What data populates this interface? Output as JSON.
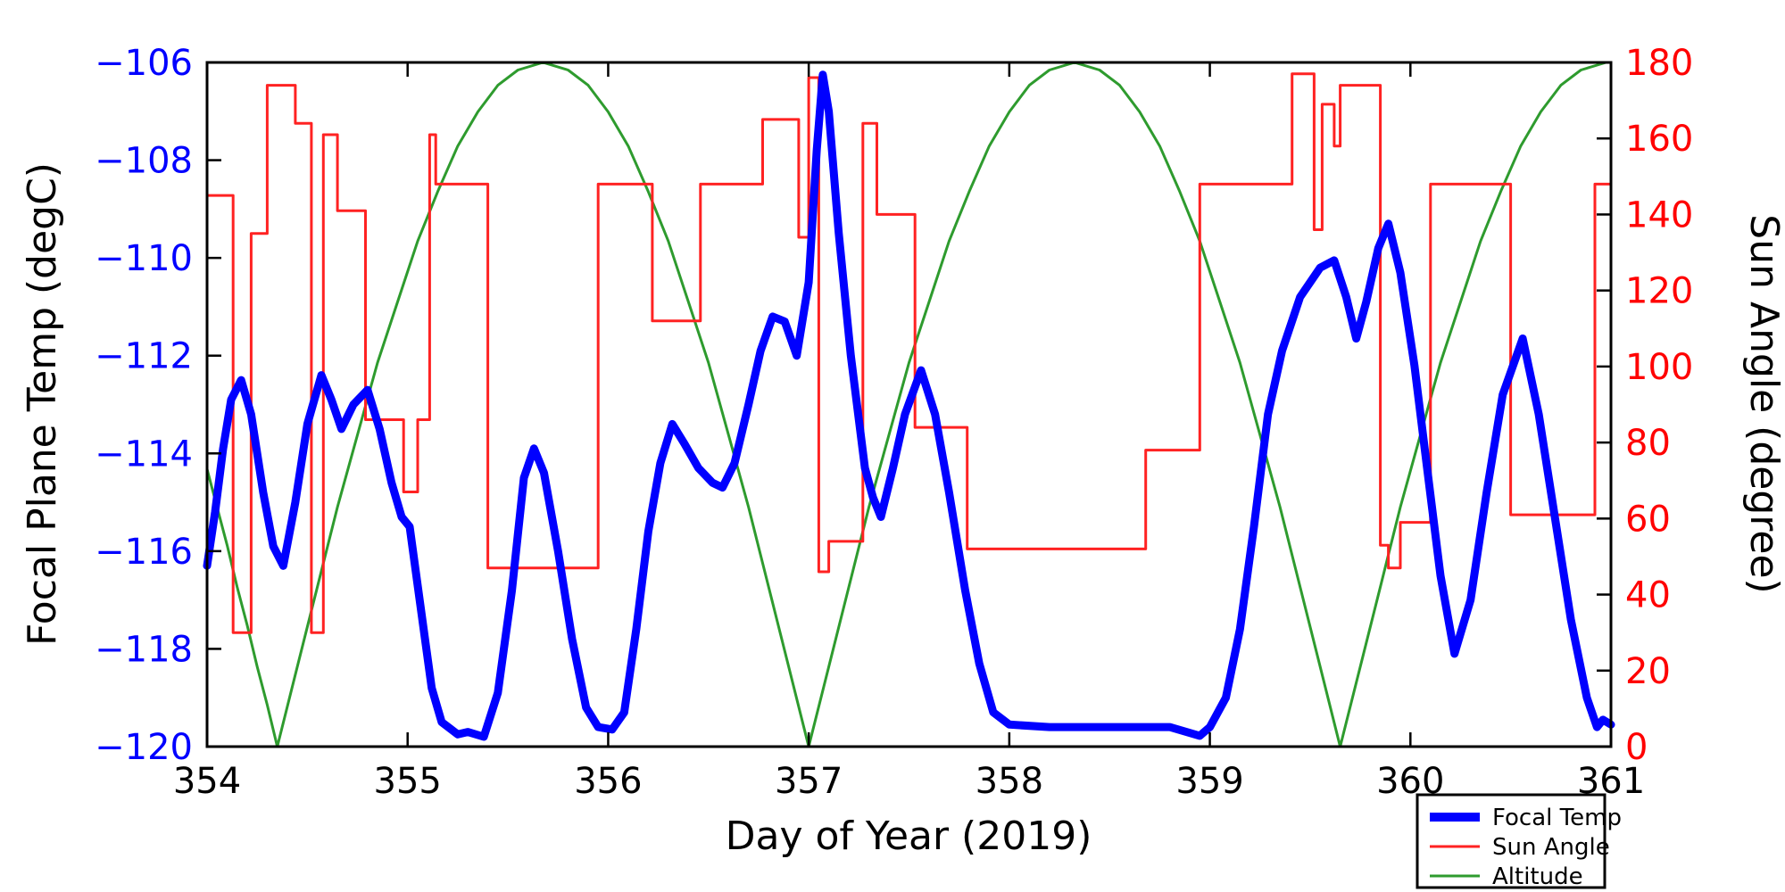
{
  "figure": {
    "background": "#ffffff"
  },
  "axes": {
    "x": {
      "label": "Day of Year (2019)",
      "min": 354,
      "max": 361,
      "ticks": [
        354,
        355,
        356,
        357,
        358,
        359,
        360,
        361
      ],
      "tick_color": "#000000",
      "label_color": "#000000"
    },
    "y_left": {
      "label": "Focal Plane Temp (degC)",
      "min": -120,
      "max": -106,
      "ticks": [
        -106,
        -108,
        -110,
        -112,
        -114,
        -116,
        -118,
        -120
      ],
      "tick_color": "#0000ff",
      "label_color": "#000000"
    },
    "y_right": {
      "label": "Sun Angle (degree)",
      "min": 0,
      "max": 180,
      "ticks": [
        180,
        160,
        140,
        120,
        100,
        80,
        60,
        40,
        20,
        0
      ],
      "tick_color": "#ff0000",
      "label_color": "#000000"
    }
  },
  "legend": {
    "entries": [
      {
        "label": "Focal Temp",
        "color": "#0000ff",
        "line_width": 10
      },
      {
        "label": "Sun Angle",
        "color": "#ff2222",
        "line_width": 3
      },
      {
        "label": "Altitude",
        "color": "#2e9b2e",
        "line_width": 3
      }
    ]
  },
  "chart_data": {
    "type": "line",
    "title": "",
    "xlabel": "Day of Year (2019)",
    "ylabel_left": "Focal Plane Temp (degC)",
    "ylabel_right": "Sun Angle (degree)",
    "x_range": [
      354,
      361
    ],
    "y_left_range": [
      -120,
      -106
    ],
    "y_right_range": [
      0,
      180
    ],
    "grid": false,
    "legend_position": "lower-right-outside",
    "series": [
      {
        "name": "Focal Temp",
        "axis": "left",
        "color": "#0000ff",
        "width": 9,
        "step": false,
        "points": [
          [
            354.0,
            -116.3
          ],
          [
            354.04,
            -115.2
          ],
          [
            354.08,
            -113.9
          ],
          [
            354.12,
            -112.9
          ],
          [
            354.17,
            -112.5
          ],
          [
            354.22,
            -113.2
          ],
          [
            354.28,
            -114.8
          ],
          [
            354.33,
            -115.9
          ],
          [
            354.38,
            -116.3
          ],
          [
            354.44,
            -115.0
          ],
          [
            354.5,
            -113.4
          ],
          [
            354.57,
            -112.4
          ],
          [
            354.62,
            -112.9
          ],
          [
            354.67,
            -113.5
          ],
          [
            354.73,
            -113.0
          ],
          [
            354.8,
            -112.7
          ],
          [
            354.86,
            -113.5
          ],
          [
            354.92,
            -114.6
          ],
          [
            354.97,
            -115.3
          ],
          [
            355.01,
            -115.5
          ],
          [
            355.06,
            -117.0
          ],
          [
            355.12,
            -118.8
          ],
          [
            355.17,
            -119.5
          ],
          [
            355.25,
            -119.75
          ],
          [
            355.3,
            -119.7
          ],
          [
            355.38,
            -119.8
          ],
          [
            355.45,
            -118.9
          ],
          [
            355.52,
            -116.8
          ],
          [
            355.58,
            -114.5
          ],
          [
            355.63,
            -113.9
          ],
          [
            355.68,
            -114.4
          ],
          [
            355.75,
            -116.0
          ],
          [
            355.82,
            -117.8
          ],
          [
            355.89,
            -119.2
          ],
          [
            355.95,
            -119.6
          ],
          [
            356.02,
            -119.65
          ],
          [
            356.08,
            -119.3
          ],
          [
            356.14,
            -117.6
          ],
          [
            356.2,
            -115.6
          ],
          [
            356.26,
            -114.2
          ],
          [
            356.32,
            -113.4
          ],
          [
            356.38,
            -113.8
          ],
          [
            356.45,
            -114.3
          ],
          [
            356.52,
            -114.6
          ],
          [
            356.57,
            -114.7
          ],
          [
            356.63,
            -114.2
          ],
          [
            356.7,
            -113.0
          ],
          [
            356.76,
            -111.9
          ],
          [
            356.82,
            -111.2
          ],
          [
            356.88,
            -111.3
          ],
          [
            356.94,
            -112.0
          ],
          [
            357.0,
            -110.5
          ],
          [
            357.04,
            -107.8
          ],
          [
            357.07,
            -106.25
          ],
          [
            357.1,
            -107.0
          ],
          [
            357.15,
            -109.5
          ],
          [
            357.21,
            -112.0
          ],
          [
            357.28,
            -114.3
          ],
          [
            357.32,
            -114.9
          ],
          [
            357.36,
            -115.3
          ],
          [
            357.42,
            -114.3
          ],
          [
            357.48,
            -113.2
          ],
          [
            357.56,
            -112.3
          ],
          [
            357.63,
            -113.2
          ],
          [
            357.7,
            -114.8
          ],
          [
            357.78,
            -116.8
          ],
          [
            357.85,
            -118.3
          ],
          [
            357.92,
            -119.3
          ],
          [
            358.0,
            -119.55
          ],
          [
            358.2,
            -119.6
          ],
          [
            358.5,
            -119.6
          ],
          [
            358.8,
            -119.6
          ],
          [
            358.95,
            -119.78
          ],
          [
            359.0,
            -119.6
          ],
          [
            359.08,
            -119.0
          ],
          [
            359.15,
            -117.6
          ],
          [
            359.22,
            -115.5
          ],
          [
            359.29,
            -113.2
          ],
          [
            359.36,
            -111.9
          ],
          [
            359.45,
            -110.8
          ],
          [
            359.55,
            -110.2
          ],
          [
            359.62,
            -110.05
          ],
          [
            359.68,
            -110.8
          ],
          [
            359.73,
            -111.65
          ],
          [
            359.78,
            -110.9
          ],
          [
            359.84,
            -109.8
          ],
          [
            359.89,
            -109.3
          ],
          [
            359.95,
            -110.3
          ],
          [
            360.02,
            -112.2
          ],
          [
            360.08,
            -114.2
          ],
          [
            360.15,
            -116.5
          ],
          [
            360.22,
            -118.1
          ],
          [
            360.3,
            -117.0
          ],
          [
            360.38,
            -114.8
          ],
          [
            360.46,
            -112.8
          ],
          [
            360.56,
            -111.65
          ],
          [
            360.64,
            -113.2
          ],
          [
            360.72,
            -115.3
          ],
          [
            360.8,
            -117.4
          ],
          [
            360.88,
            -119.0
          ],
          [
            360.93,
            -119.6
          ],
          [
            360.96,
            -119.45
          ],
          [
            361.0,
            -119.55
          ]
        ]
      },
      {
        "name": "Sun Angle",
        "axis": "right",
        "color": "#ff2222",
        "width": 3,
        "step": true,
        "points": [
          [
            354.0,
            145
          ],
          [
            354.13,
            30
          ],
          [
            354.22,
            135
          ],
          [
            354.3,
            174
          ],
          [
            354.44,
            164
          ],
          [
            354.52,
            30
          ],
          [
            354.58,
            161
          ],
          [
            354.65,
            141
          ],
          [
            354.79,
            86
          ],
          [
            354.98,
            67
          ],
          [
            355.05,
            86
          ],
          [
            355.11,
            161
          ],
          [
            355.14,
            148
          ],
          [
            355.4,
            47
          ],
          [
            355.95,
            148
          ],
          [
            356.22,
            112
          ],
          [
            356.46,
            148
          ],
          [
            356.77,
            165
          ],
          [
            356.95,
            134
          ],
          [
            357.0,
            176
          ],
          [
            357.05,
            46
          ],
          [
            357.1,
            54
          ],
          [
            357.27,
            164
          ],
          [
            357.34,
            140
          ],
          [
            357.53,
            84
          ],
          [
            357.79,
            52
          ],
          [
            358.68,
            78
          ],
          [
            358.95,
            148
          ],
          [
            359.41,
            177
          ],
          [
            359.52,
            136
          ],
          [
            359.56,
            169
          ],
          [
            359.62,
            158
          ],
          [
            359.65,
            174
          ],
          [
            359.85,
            53
          ],
          [
            359.89,
            47
          ],
          [
            359.95,
            59
          ],
          [
            360.1,
            148
          ],
          [
            360.5,
            61
          ],
          [
            360.92,
            148
          ],
          [
            361.0,
            148
          ]
        ]
      },
      {
        "name": "Altitude",
        "axis": "right",
        "color": "#2e9b2e",
        "width": 3,
        "step": false,
        "points": [
          [
            354.0,
            73
          ],
          [
            354.05,
            63
          ],
          [
            354.1,
            53
          ],
          [
            354.15,
            42
          ],
          [
            354.2,
            32
          ],
          [
            354.25,
            21
          ],
          [
            354.3,
            11
          ],
          [
            354.35,
            0
          ],
          [
            354.45,
            21
          ],
          [
            354.55,
            42
          ],
          [
            354.65,
            63
          ],
          [
            354.75,
            82
          ],
          [
            354.85,
            101
          ],
          [
            354.95,
            117
          ],
          [
            355.05,
            133
          ],
          [
            355.15,
            146
          ],
          [
            355.25,
            158
          ],
          [
            355.35,
            167
          ],
          [
            355.45,
            174
          ],
          [
            355.55,
            178
          ],
          [
            355.675,
            180
          ],
          [
            355.8,
            178
          ],
          [
            355.9,
            174
          ],
          [
            356.0,
            167
          ],
          [
            356.1,
            158
          ],
          [
            356.2,
            146
          ],
          [
            356.3,
            133
          ],
          [
            356.4,
            117
          ],
          [
            356.5,
            101
          ],
          [
            356.6,
            82
          ],
          [
            356.7,
            63
          ],
          [
            356.8,
            42
          ],
          [
            356.9,
            21
          ],
          [
            357.0,
            0
          ],
          [
            357.1,
            21
          ],
          [
            357.2,
            42
          ],
          [
            357.3,
            63
          ],
          [
            357.4,
            82
          ],
          [
            357.5,
            101
          ],
          [
            357.6,
            117
          ],
          [
            357.7,
            133
          ],
          [
            357.8,
            146
          ],
          [
            357.9,
            158
          ],
          [
            358.0,
            167
          ],
          [
            358.1,
            174
          ],
          [
            358.2,
            178
          ],
          [
            358.325,
            180
          ],
          [
            358.45,
            178
          ],
          [
            358.55,
            174
          ],
          [
            358.65,
            167
          ],
          [
            358.75,
            158
          ],
          [
            358.85,
            146
          ],
          [
            358.95,
            133
          ],
          [
            359.05,
            117
          ],
          [
            359.15,
            101
          ],
          [
            359.25,
            82
          ],
          [
            359.35,
            63
          ],
          [
            359.45,
            42
          ],
          [
            359.55,
            21
          ],
          [
            359.65,
            0
          ],
          [
            359.75,
            21
          ],
          [
            359.85,
            42
          ],
          [
            359.95,
            63
          ],
          [
            360.05,
            82
          ],
          [
            360.15,
            101
          ],
          [
            360.25,
            117
          ],
          [
            360.35,
            133
          ],
          [
            360.45,
            146
          ],
          [
            360.55,
            158
          ],
          [
            360.65,
            167
          ],
          [
            360.75,
            174
          ],
          [
            360.85,
            178
          ],
          [
            360.975,
            180
          ],
          [
            361.0,
            180
          ]
        ]
      }
    ]
  }
}
